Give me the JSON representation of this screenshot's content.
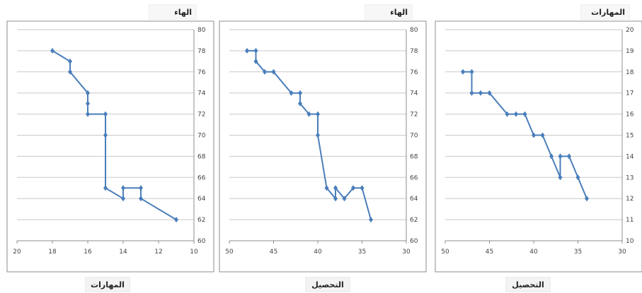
{
  "chart_data": [
    {
      "type": "line",
      "title": "الهاء",
      "xlabel": "المهارات",
      "ylabel": "",
      "x_reversed": true,
      "y_axis_position": "right",
      "grid": true,
      "xlim": [
        20,
        10
      ],
      "ylim": [
        60,
        80
      ],
      "xticks": [
        "20",
        "18",
        "16",
        "14",
        "12",
        "10"
      ],
      "yticks": [
        "80",
        "78",
        "76",
        "74",
        "72",
        "70",
        "68",
        "66",
        "64",
        "62",
        "60"
      ],
      "series": [
        {
          "color": "#4a7ebb",
          "x": [
            18,
            17,
            17,
            16,
            16,
            16,
            15,
            15,
            15,
            14,
            14,
            13,
            13,
            11
          ],
          "y": [
            78,
            77,
            76,
            74,
            73,
            72,
            72,
            70,
            65,
            64,
            65,
            65,
            64,
            62
          ]
        }
      ]
    },
    {
      "type": "line",
      "title": "الهاء",
      "xlabel": "التحصيل",
      "ylabel": "",
      "x_reversed": true,
      "y_axis_position": "right",
      "grid": true,
      "xlim": [
        50,
        30
      ],
      "ylim": [
        60,
        80
      ],
      "xticks": [
        "50",
        "45",
        "40",
        "35",
        "30"
      ],
      "yticks": [
        "80",
        "78",
        "76",
        "74",
        "72",
        "70",
        "68",
        "66",
        "64",
        "62",
        "60"
      ],
      "series": [
        {
          "color": "#4a7ebb",
          "x": [
            48,
            47,
            47,
            46,
            45,
            43,
            42,
            42,
            41,
            40,
            40,
            39,
            38,
            38,
            37,
            36,
            35,
            34
          ],
          "y": [
            78,
            78,
            77,
            76,
            76,
            74,
            74,
            73,
            72,
            72,
            70,
            65,
            64,
            65,
            64,
            65,
            65,
            62
          ]
        }
      ]
    },
    {
      "type": "line",
      "title": "المهارات",
      "xlabel": "التحصيل",
      "ylabel": "",
      "x_reversed": true,
      "y_axis_position": "right",
      "grid": true,
      "xlim": [
        50,
        30
      ],
      "ylim": [
        10,
        20
      ],
      "xticks": [
        "50",
        "45",
        "40",
        "35",
        "30"
      ],
      "yticks": [
        "20",
        "19",
        "18",
        "17",
        "16",
        "15",
        "14",
        "13",
        "12",
        "11",
        "10"
      ],
      "series": [
        {
          "color": "#4a7ebb",
          "x": [
            48,
            47,
            47,
            46,
            45,
            43,
            42,
            41,
            40,
            39,
            38,
            37,
            37,
            36,
            35,
            34
          ],
          "y": [
            18,
            18,
            17,
            17,
            17,
            16,
            16,
            16,
            15,
            15,
            14,
            13,
            14,
            14,
            13,
            12
          ]
        }
      ]
    }
  ]
}
